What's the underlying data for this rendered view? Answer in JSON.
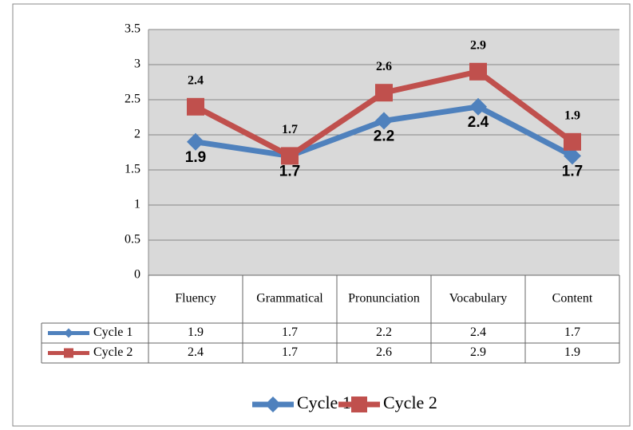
{
  "chart_data": {
    "type": "line",
    "categories": [
      "Fluency",
      "Grammatical",
      "Pronunciation",
      "Vocabulary",
      "Content"
    ],
    "series": [
      {
        "name": "Cycle 1",
        "color": "#4f81bd",
        "marker": "diamond",
        "values": [
          1.9,
          1.7,
          2.2,
          2.4,
          1.7
        ]
      },
      {
        "name": "Cycle 2",
        "color": "#c0504d",
        "marker": "square",
        "values": [
          2.4,
          1.7,
          2.6,
          2.9,
          1.9
        ]
      }
    ],
    "ylim": [
      0,
      3.5
    ],
    "yticks": [
      0,
      0.5,
      1,
      1.5,
      2,
      2.5,
      3,
      3.5
    ],
    "grid": true,
    "data_table": true,
    "legend": "bottom"
  }
}
